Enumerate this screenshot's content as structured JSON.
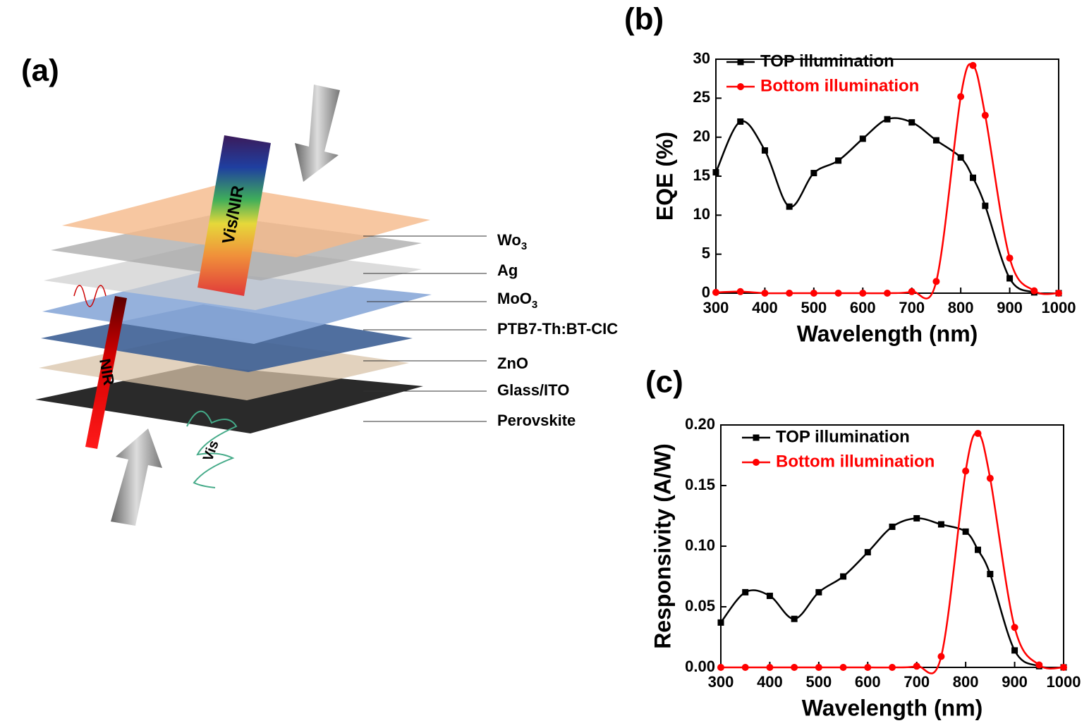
{
  "panel_labels": {
    "a": "(a)",
    "b": "(b)",
    "c": "(c)"
  },
  "diagram": {
    "layers": [
      {
        "text": "Wo",
        "sub": "3"
      },
      {
        "text": "Ag"
      },
      {
        "text": "MoO",
        "sub": "3"
      },
      {
        "text": "PTB7-Th:BT-CIC"
      },
      {
        "text": "ZnO"
      },
      {
        "text": "Glass/ITO"
      },
      {
        "text": "Perovskite"
      }
    ],
    "beams": {
      "vis_nir": "Vis/NIR",
      "nir": "NIR",
      "vis": "Vis"
    }
  },
  "chart_data": [
    {
      "type": "line",
      "x_label": "Wavelength (nm)",
      "y_label": "EQE (%)",
      "x": [
        300,
        350,
        400,
        450,
        500,
        550,
        600,
        650,
        700,
        750,
        800,
        825,
        850,
        900,
        950,
        1000
      ],
      "xlim": [
        300,
        1000
      ],
      "xticks": [
        300,
        400,
        500,
        600,
        700,
        800,
        900,
        1000
      ],
      "ylim": [
        0,
        30
      ],
      "yticks": [
        0,
        5,
        10,
        15,
        20,
        25,
        30
      ],
      "series": [
        {
          "name": "TOP illumination",
          "color": "#000000",
          "marker": "square",
          "values": [
            15.5,
            22,
            18.3,
            11.1,
            15.4,
            17,
            19.8,
            22.3,
            21.9,
            19.6,
            17.4,
            14.8,
            11.2,
            1.9,
            0.1,
            0
          ]
        },
        {
          "name": "Bottom illumination",
          "color": "#ff0000",
          "marker": "circle",
          "values": [
            0.1,
            0.2,
            0,
            0,
            0,
            0,
            0,
            0,
            0.2,
            1.5,
            25.2,
            29.2,
            22.8,
            4.5,
            0.3,
            0
          ]
        }
      ]
    },
    {
      "type": "line",
      "x_label": "Wavelength (nm)",
      "y_label": "Responsivity (A/W)",
      "x": [
        300,
        350,
        400,
        450,
        500,
        550,
        600,
        650,
        700,
        750,
        800,
        825,
        850,
        900,
        950,
        1000
      ],
      "xlim": [
        300,
        1000
      ],
      "xticks": [
        300,
        400,
        500,
        600,
        700,
        800,
        900,
        1000
      ],
      "ylim": [
        0,
        0.2
      ],
      "yticks": [
        {
          "value": 0,
          "label": "0.00"
        },
        {
          "value": 0.05,
          "label": "0.05"
        },
        {
          "value": 0.1,
          "label": "0.10"
        },
        {
          "value": 0.15,
          "label": "0.15"
        },
        {
          "value": 0.2,
          "label": "0.20"
        }
      ],
      "series": [
        {
          "name": "TOP illumination",
          "color": "#000000",
          "marker": "square",
          "values": [
            0.037,
            0.062,
            0.059,
            0.04,
            0.062,
            0.075,
            0.095,
            0.116,
            0.123,
            0.118,
            0.112,
            0.097,
            0.077,
            0.014,
            0.001,
            0
          ]
        },
        {
          "name": "Bottom illumination",
          "color": "#ff0000",
          "marker": "circle",
          "values": [
            0,
            0,
            0,
            0,
            0,
            0,
            0,
            0,
            0.001,
            0.009,
            0.162,
            0.193,
            0.156,
            0.033,
            0.002,
            0
          ]
        }
      ]
    }
  ]
}
